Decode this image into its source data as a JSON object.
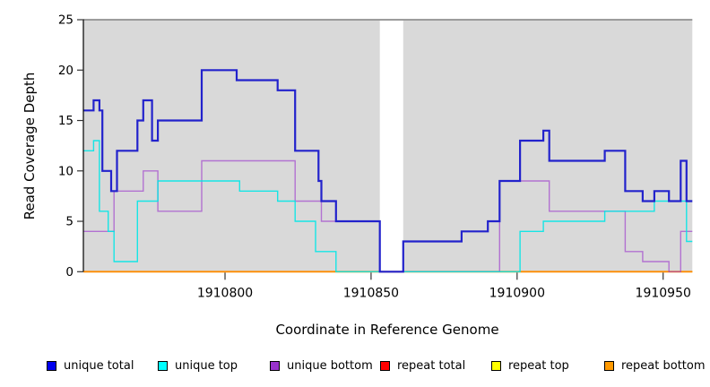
{
  "chart_data": {
    "type": "line",
    "subtype": "step-coverage-plot",
    "title": "",
    "xlabel": "Coordinate in Reference Genome",
    "ylabel": "Read Coverage Depth",
    "x_range": [
      1910751.5,
      1910960
    ],
    "y_range": [
      0,
      25
    ],
    "x_ticks": [
      1910800,
      1910850,
      1910900,
      1910950
    ],
    "y_ticks": [
      0,
      5,
      10,
      15,
      20,
      25
    ],
    "panel_background": "#d9d9d9",
    "panel_border_color": "#808080",
    "gap_region": [
      1910853,
      1910861
    ],
    "grid": false,
    "legend_position": "bottom",
    "series": [
      {
        "name": "unique total",
        "color": "#2222cc",
        "line_width": 2.2,
        "opacity": 1,
        "points": [
          [
            1910751.5,
            16
          ],
          [
            1910755,
            17
          ],
          [
            1910757,
            16
          ],
          [
            1910758,
            10
          ],
          [
            1910761,
            8
          ],
          [
            1910763,
            12
          ],
          [
            1910770,
            15
          ],
          [
            1910772,
            17
          ],
          [
            1910775,
            13
          ],
          [
            1910777,
            15
          ],
          [
            1910792,
            20
          ],
          [
            1910804,
            19
          ],
          [
            1910818,
            18
          ],
          [
            1910824,
            12
          ],
          [
            1910832,
            9
          ],
          [
            1910833,
            7
          ],
          [
            1910838,
            5
          ],
          [
            1910853,
            0
          ],
          [
            1910861,
            3
          ],
          [
            1910881,
            4
          ],
          [
            1910890,
            5
          ],
          [
            1910894,
            9
          ],
          [
            1910901,
            13
          ],
          [
            1910909,
            14
          ],
          [
            1910911,
            11
          ],
          [
            1910930,
            12
          ],
          [
            1910937,
            8
          ],
          [
            1910943,
            7
          ],
          [
            1910947,
            8
          ],
          [
            1910952,
            7
          ],
          [
            1910956,
            11
          ],
          [
            1910958,
            7
          ],
          [
            1910960,
            7
          ]
        ]
      },
      {
        "name": "unique top",
        "color": "#00e5e5",
        "line_width": 1.4,
        "opacity": 0.9,
        "points": [
          [
            1910751.5,
            12
          ],
          [
            1910755,
            13
          ],
          [
            1910757,
            6
          ],
          [
            1910760,
            4
          ],
          [
            1910762,
            1
          ],
          [
            1910770,
            7
          ],
          [
            1910777,
            9
          ],
          [
            1910805,
            8
          ],
          [
            1910818,
            7
          ],
          [
            1910824,
            5
          ],
          [
            1910831,
            2
          ],
          [
            1910838,
            0
          ],
          [
            1910901,
            4
          ],
          [
            1910909,
            5
          ],
          [
            1910930,
            6
          ],
          [
            1910947,
            7
          ],
          [
            1910958,
            3
          ],
          [
            1910960,
            3
          ]
        ]
      },
      {
        "name": "unique bottom",
        "color": "#9932cc",
        "line_width": 1.4,
        "opacity": 0.62,
        "points": [
          [
            1910751.5,
            4
          ],
          [
            1910762,
            8
          ],
          [
            1910772,
            10
          ],
          [
            1910777,
            6
          ],
          [
            1910792,
            11
          ],
          [
            1910824,
            7
          ],
          [
            1910833,
            5
          ],
          [
            1910853,
            0
          ],
          [
            1910894,
            9
          ],
          [
            1910911,
            6
          ],
          [
            1910937,
            2
          ],
          [
            1910943,
            1
          ],
          [
            1910952,
            0
          ],
          [
            1910956,
            4
          ],
          [
            1910960,
            4
          ]
        ]
      },
      {
        "name": "repeat total",
        "color": "#ee0000",
        "line_width": 1.4,
        "opacity": 1,
        "points": [
          [
            1910751.5,
            0
          ],
          [
            1910960,
            0
          ]
        ]
      },
      {
        "name": "repeat top",
        "color": "#ffff00",
        "line_width": 1.4,
        "opacity": 1,
        "points": [
          [
            1910751.5,
            0
          ],
          [
            1910960,
            0
          ]
        ]
      },
      {
        "name": "repeat bottom",
        "color": "#ff8c00",
        "line_width": 1.8,
        "opacity": 1,
        "points": [
          [
            1910751.5,
            0
          ],
          [
            1910960,
            0
          ]
        ]
      }
    ]
  },
  "legend": {
    "items": [
      {
        "label": "unique total",
        "color": "#0000ee"
      },
      {
        "label": "unique top",
        "color": "#00ffff"
      },
      {
        "label": "unique bottom",
        "color": "#9932cc"
      },
      {
        "label": "repeat total",
        "color": "#ff0000"
      },
      {
        "label": "repeat top",
        "color": "#ffff00"
      },
      {
        "label": "repeat bottom",
        "color": "#ff9900"
      }
    ]
  }
}
